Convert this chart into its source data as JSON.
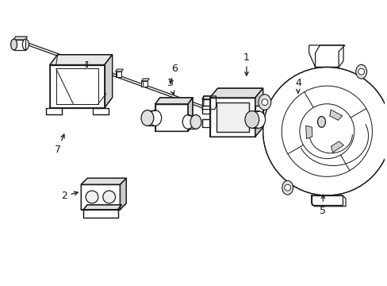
{
  "bg_color": "#ffffff",
  "line_color": "#1a1a1a",
  "line_width": 0.9,
  "figsize": [
    4.89,
    3.6
  ],
  "dpi": 100
}
